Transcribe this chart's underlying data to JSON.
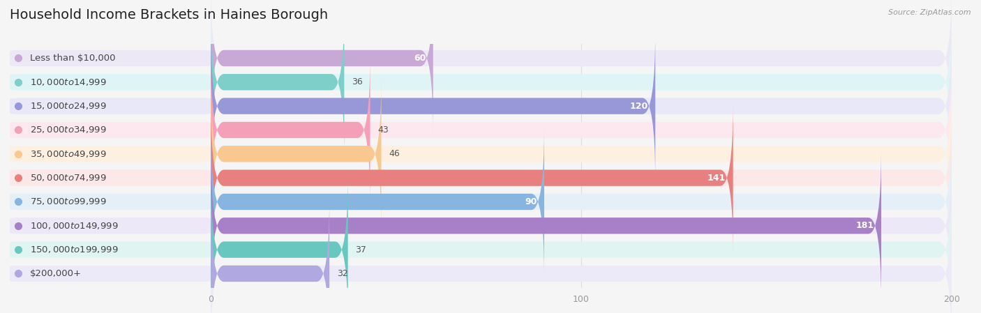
{
  "title": "Household Income Brackets in Haines Borough",
  "source": "Source: ZipAtlas.com",
  "categories": [
    "Less than $10,000",
    "$10,000 to $14,999",
    "$15,000 to $24,999",
    "$25,000 to $34,999",
    "$35,000 to $49,999",
    "$50,000 to $74,999",
    "$75,000 to $99,999",
    "$100,000 to $149,999",
    "$150,000 to $199,999",
    "$200,000+"
  ],
  "values": [
    60,
    36,
    120,
    43,
    46,
    141,
    90,
    181,
    37,
    32
  ],
  "bar_colors": [
    "#c8a8d4",
    "#7ececa",
    "#9898d8",
    "#f4a0b8",
    "#f8c890",
    "#e88080",
    "#88b4e0",
    "#a880c8",
    "#68c8c0",
    "#b0a8e0"
  ],
  "bar_bg_colors": [
    "#ede8f5",
    "#dff4f4",
    "#e8e8f8",
    "#fde8f0",
    "#fdf0e0",
    "#fce8e8",
    "#e4eff8",
    "#ece8f8",
    "#e0f4f2",
    "#eceaf8"
  ],
  "dot_colors": [
    "#c8a8d4",
    "#7ececa",
    "#9898d8",
    "#f4a0b8",
    "#f8c890",
    "#e88080",
    "#88b4e0",
    "#a880c8",
    "#68c8c0",
    "#b0a8e0"
  ],
  "xlim": [
    0,
    200
  ],
  "xticks": [
    0,
    100,
    200
  ],
  "background_color": "#f5f5f5",
  "plot_bg_color": "#ffffff",
  "title_fontsize": 14,
  "label_fontsize": 9.5,
  "value_fontsize": 9,
  "tick_fontsize": 9
}
